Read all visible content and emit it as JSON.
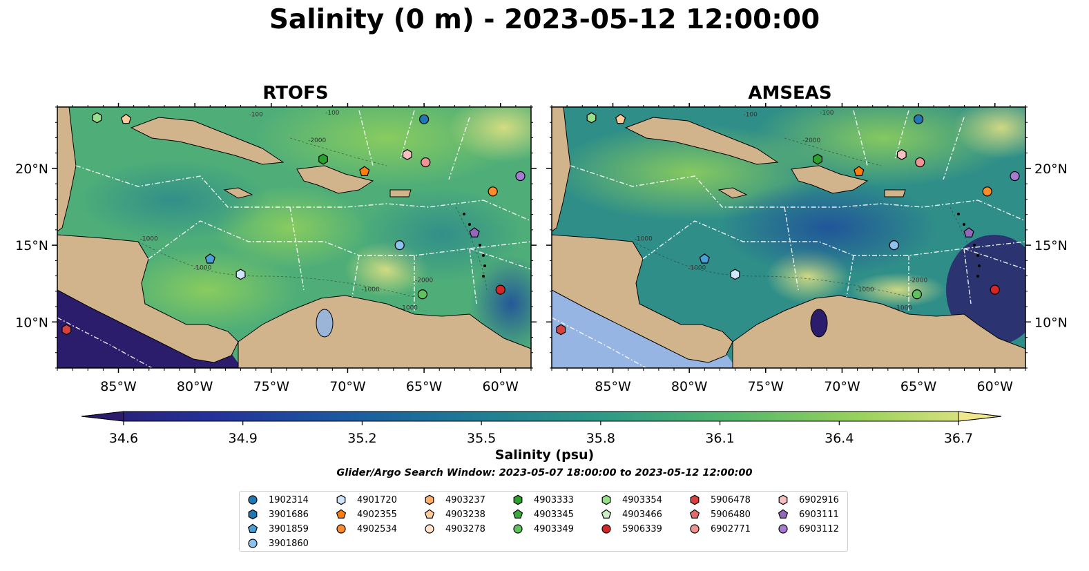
{
  "title": "Salinity (0 m) - 2023-05-12 12:00:00",
  "panels": [
    "RTOFS",
    "AMSEAS"
  ],
  "colors": {
    "land": "#d2b48c",
    "lake": "#9bb5d9",
    "pacific_low": "#2b1d6c",
    "amseas_pacific": "#97b5e3"
  },
  "chart_data": [
    {
      "type": "heatmap",
      "title": "RTOFS",
      "variable": "Salinity",
      "depth": "0 m",
      "x_ticks": [
        "85°W",
        "80°W",
        "75°W",
        "70°W",
        "65°W",
        "60°W"
      ],
      "x_tick_values": [
        -85,
        -80,
        -75,
        -70,
        -65,
        -60
      ],
      "y_ticks_left": [
        "20°N",
        "15°N",
        "10°N"
      ],
      "y_tick_values": [
        20,
        15,
        10
      ],
      "xlim": [
        -89,
        -58
      ],
      "ylim": [
        7,
        24
      ],
      "contour_labels": [
        "-100",
        "-1000",
        "-2000",
        "-1000",
        "-1000",
        "-2000",
        "-1000",
        "-100"
      ],
      "colorbar": {
        "label": "Salinity (psu)",
        "ticks": [
          34.6,
          34.9,
          35.2,
          35.5,
          35.8,
          36.1,
          36.4,
          36.7
        ],
        "range": [
          34.6,
          36.7
        ],
        "extend": "both"
      }
    },
    {
      "type": "heatmap",
      "title": "AMSEAS",
      "variable": "Salinity",
      "depth": "0 m",
      "x_ticks": [
        "85°W",
        "80°W",
        "75°W",
        "70°W",
        "65°W",
        "60°W"
      ],
      "x_tick_values": [
        -85,
        -80,
        -75,
        -70,
        -65,
        -60
      ],
      "y_ticks_right": [
        "20°N",
        "15°N",
        "10°N"
      ],
      "y_tick_values": [
        20,
        15,
        10
      ],
      "xlim": [
        -89,
        -58
      ],
      "ylim": [
        7,
        24
      ],
      "contour_labels": [
        "-100",
        "-1000",
        "-2000",
        "-1000",
        "-1000",
        "-2000",
        "-1000",
        "-100"
      ]
    }
  ],
  "colorbar_ticks": [
    "34.6",
    "34.9",
    "35.2",
    "35.5",
    "35.8",
    "36.1",
    "36.4",
    "36.7"
  ],
  "colorbar_label": "Salinity (psu)",
  "search_window": "Glider/Argo Search Window: 2023-05-07 18:00:00 to 2023-05-12 12:00:00",
  "floats": [
    {
      "id": "1902314",
      "marker": "circle",
      "color": "#1f77b4",
      "lon": -65.0,
      "lat": 23.2
    },
    {
      "id": "3901686",
      "marker": "hexagon",
      "color": "#1f77b4",
      "lon": null,
      "lat": null
    },
    {
      "id": "3901859",
      "marker": "pentagon",
      "color": "#4a9fd6",
      "lon": -79.0,
      "lat": 14.1
    },
    {
      "id": "3901860",
      "marker": "circle",
      "color": "#8bc2ee",
      "lon": -66.6,
      "lat": 15.0
    },
    {
      "id": "4901720",
      "marker": "hexagon",
      "color": "#cfe6fb",
      "lon": -77.0,
      "lat": 13.1
    },
    {
      "id": "4902355",
      "marker": "pentagon",
      "color": "#ff7f0e",
      "lon": -68.9,
      "lat": 19.8
    },
    {
      "id": "4902534",
      "marker": "circle",
      "color": "#ff8c2a",
      "lon": -60.5,
      "lat": 18.5
    },
    {
      "id": "4903237",
      "marker": "hexagon",
      "color": "#ffae6b",
      "lon": null,
      "lat": null
    },
    {
      "id": "4903238",
      "marker": "pentagon",
      "color": "#ffcc99",
      "lon": -84.5,
      "lat": 23.2
    },
    {
      "id": "4903278",
      "marker": "circle",
      "color": "#ffe4cc",
      "lon": null,
      "lat": null
    },
    {
      "id": "4903333",
      "marker": "hexagon",
      "color": "#2ca02c",
      "lon": -71.6,
      "lat": 20.6
    },
    {
      "id": "4903345",
      "marker": "pentagon",
      "color": "#3aaa3a",
      "lon": null,
      "lat": null
    },
    {
      "id": "4903349",
      "marker": "circle",
      "color": "#5fc25f",
      "lon": -65.1,
      "lat": 11.8
    },
    {
      "id": "4903354",
      "marker": "hexagon",
      "color": "#98df8a",
      "lon": -86.4,
      "lat": 23.3
    },
    {
      "id": "4903466",
      "marker": "pentagon",
      "color": "#ccf0c4",
      "lon": null,
      "lat": null
    },
    {
      "id": "5906339",
      "marker": "circle",
      "color": "#d62728",
      "lon": -60.0,
      "lat": 12.1
    },
    {
      "id": "5906478",
      "marker": "hexagon",
      "color": "#d94040",
      "lon": -88.4,
      "lat": 9.5
    },
    {
      "id": "5906480",
      "marker": "pentagon",
      "color": "#e46a6a",
      "lon": null,
      "lat": null
    },
    {
      "id": "6902771",
      "marker": "circle",
      "color": "#f09393",
      "lon": -64.9,
      "lat": 20.4
    },
    {
      "id": "6902916",
      "marker": "hexagon",
      "color": "#f6c0c0",
      "lon": -66.1,
      "lat": 20.9
    },
    {
      "id": "6903111",
      "marker": "pentagon",
      "color": "#9467bd",
      "lon": -61.7,
      "lat": 15.8
    },
    {
      "id": "6903112",
      "marker": "circle",
      "color": "#a57cd0",
      "lon": -58.7,
      "lat": 19.5
    }
  ]
}
